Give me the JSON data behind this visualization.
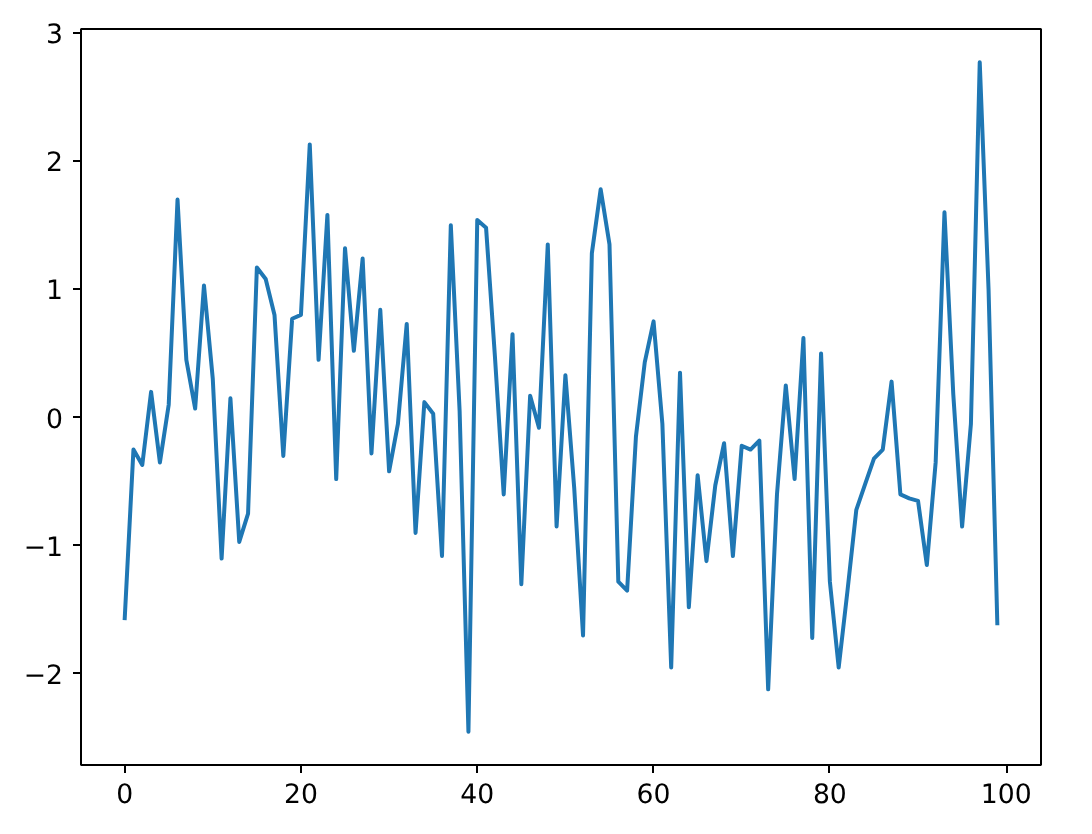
{
  "chart_data": {
    "type": "line",
    "x": [
      0,
      1,
      2,
      3,
      4,
      5,
      6,
      7,
      8,
      9,
      10,
      11,
      12,
      13,
      14,
      15,
      16,
      17,
      18,
      19,
      20,
      21,
      22,
      23,
      24,
      25,
      26,
      27,
      28,
      29,
      30,
      31,
      32,
      33,
      34,
      35,
      36,
      37,
      38,
      39,
      40,
      41,
      42,
      43,
      44,
      45,
      46,
      47,
      48,
      49,
      50,
      51,
      52,
      53,
      54,
      55,
      56,
      57,
      58,
      59,
      60,
      61,
      62,
      63,
      64,
      65,
      66,
      67,
      68,
      69,
      70,
      71,
      72,
      73,
      74,
      75,
      76,
      77,
      78,
      79,
      80,
      81,
      82,
      83,
      84,
      85,
      86,
      87,
      88,
      89,
      90,
      91,
      92,
      93,
      94,
      95,
      96,
      97,
      98,
      99
    ],
    "series": [
      {
        "color": "#1f77b4",
        "values": [
          -1.58,
          -0.25,
          -0.37,
          0.2,
          -0.35,
          0.1,
          1.7,
          0.45,
          0.07,
          1.03,
          0.3,
          -1.1,
          0.15,
          -0.97,
          -0.75,
          1.17,
          1.08,
          0.8,
          -0.3,
          0.77,
          0.8,
          2.13,
          0.45,
          1.58,
          -0.48,
          1.32,
          0.52,
          1.24,
          -0.28,
          0.84,
          -0.42,
          -0.05,
          0.73,
          -0.9,
          0.12,
          0.03,
          -1.08,
          1.5,
          0.05,
          -2.45,
          1.54,
          1.48,
          0.48,
          -0.6,
          0.65,
          -1.3,
          0.17,
          -0.08,
          1.35,
          -0.85,
          0.33,
          -0.55,
          -1.7,
          1.28,
          1.78,
          1.35,
          -1.28,
          -1.35,
          -0.15,
          0.43,
          0.75,
          -0.05,
          -1.95,
          0.35,
          -1.48,
          -0.45,
          -1.12,
          -0.53,
          -0.2,
          -1.08,
          -0.22,
          -0.25,
          -0.18,
          -2.12,
          -0.6,
          0.25,
          -0.48,
          0.62,
          -1.72,
          0.5,
          -1.28,
          -1.95,
          -1.35,
          -0.72,
          -0.52,
          -0.32,
          -0.25,
          0.28,
          -0.6,
          -0.63,
          -0.65,
          -1.15,
          -0.35,
          1.6,
          0.18,
          -0.85,
          -0.05,
          2.77,
          1.0,
          -1.62
        ]
      }
    ],
    "xlim": [
      -4.95,
      103.95
    ],
    "ylim": [
      -2.71,
      3.03
    ],
    "xticks": [
      0,
      20,
      40,
      60,
      80,
      100
    ],
    "yticks": [
      {
        "value": -2,
        "label": "−2"
      },
      {
        "value": -1,
        "label": "−1"
      },
      0,
      1,
      2,
      3
    ],
    "grid": false,
    "marker": "none",
    "line_style": "solid"
  }
}
